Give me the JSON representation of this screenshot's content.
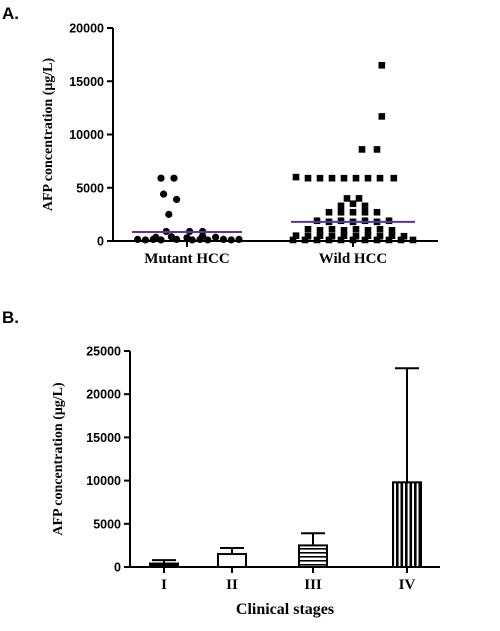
{
  "panel_labels": {
    "a": "A.",
    "b": "B."
  },
  "colors": {
    "mean_line": "#5533aa",
    "ink": "#000000",
    "paper": "#ffffff"
  },
  "chart_data": [
    {
      "type": "scatter",
      "panel": "A.",
      "ylabel": "AFP concentration (μg/L)",
      "ylim": [
        0,
        20000
      ],
      "yticks": [
        0,
        5000,
        10000,
        15000,
        20000
      ],
      "categories": [
        "Mutant HCC",
        "Wild HCC"
      ],
      "series": [
        {
          "category": "Mutant HCC",
          "marker": "circle",
          "mean": 850,
          "points": [
            {
              "dx": -0.5,
              "y": 5900
            },
            {
              "dx": -0.25,
              "y": 5900
            },
            {
              "dx": -0.45,
              "y": 4400
            },
            {
              "dx": -0.2,
              "y": 3900
            },
            {
              "dx": -0.35,
              "y": 2500
            },
            {
              "dx": -0.4,
              "y": 900
            },
            {
              "dx": 0.05,
              "y": 900
            },
            {
              "dx": 0.3,
              "y": 900
            },
            {
              "dx": -0.6,
              "y": 350
            },
            {
              "dx": -0.3,
              "y": 400
            },
            {
              "dx": 0.0,
              "y": 300
            },
            {
              "dx": 0.3,
              "y": 450
            },
            {
              "dx": 0.55,
              "y": 350
            },
            {
              "dx": -0.95,
              "y": 150
            },
            {
              "dx": -0.8,
              "y": 100
            },
            {
              "dx": -0.65,
              "y": 150
            },
            {
              "dx": -0.5,
              "y": 100
            },
            {
              "dx": -0.2,
              "y": 150
            },
            {
              "dx": 0.1,
              "y": 100
            },
            {
              "dx": 0.25,
              "y": 150
            },
            {
              "dx": 0.4,
              "y": 100
            },
            {
              "dx": 0.7,
              "y": 150
            },
            {
              "dx": 0.85,
              "y": 100
            },
            {
              "dx": 1.0,
              "y": 150
            }
          ]
        },
        {
          "category": "Wild HCC",
          "marker": "square",
          "mean": 1800,
          "points": [
            {
              "dx": 0.48,
              "y": 16500
            },
            {
              "dx": 0.48,
              "y": 11700
            },
            {
              "dx": 0.15,
              "y": 8600
            },
            {
              "dx": 0.4,
              "y": 8600
            },
            {
              "dx": -0.95,
              "y": 6000
            },
            {
              "dx": -0.75,
              "y": 5900
            },
            {
              "dx": -0.55,
              "y": 5900
            },
            {
              "dx": -0.35,
              "y": 5900
            },
            {
              "dx": -0.15,
              "y": 5900
            },
            {
              "dx": 0.05,
              "y": 5900
            },
            {
              "dx": 0.25,
              "y": 5900
            },
            {
              "dx": 0.45,
              "y": 5900
            },
            {
              "dx": 0.68,
              "y": 5900
            },
            {
              "dx": -0.1,
              "y": 4000
            },
            {
              "dx": 0.1,
              "y": 4000
            },
            {
              "dx": -0.2,
              "y": 3300
            },
            {
              "dx": 0.0,
              "y": 3500
            },
            {
              "dx": 0.2,
              "y": 3300
            },
            {
              "dx": -0.4,
              "y": 2700
            },
            {
              "dx": -0.2,
              "y": 2700
            },
            {
              "dx": 0.0,
              "y": 2700
            },
            {
              "dx": 0.2,
              "y": 2700
            },
            {
              "dx": 0.4,
              "y": 2700
            },
            {
              "dx": -0.6,
              "y": 1900
            },
            {
              "dx": -0.4,
              "y": 1800
            },
            {
              "dx": -0.2,
              "y": 1900
            },
            {
              "dx": 0.0,
              "y": 1800
            },
            {
              "dx": 0.2,
              "y": 1900
            },
            {
              "dx": 0.4,
              "y": 1800
            },
            {
              "dx": 0.6,
              "y": 1900
            },
            {
              "dx": -0.75,
              "y": 1100
            },
            {
              "dx": -0.55,
              "y": 1000
            },
            {
              "dx": -0.35,
              "y": 1100
            },
            {
              "dx": -0.15,
              "y": 1000
            },
            {
              "dx": 0.05,
              "y": 1100
            },
            {
              "dx": 0.25,
              "y": 1000
            },
            {
              "dx": 0.45,
              "y": 1100
            },
            {
              "dx": 0.65,
              "y": 1000
            },
            {
              "dx": -0.95,
              "y": 500
            },
            {
              "dx": -0.75,
              "y": 450
            },
            {
              "dx": -0.55,
              "y": 500
            },
            {
              "dx": -0.35,
              "y": 450
            },
            {
              "dx": -0.15,
              "y": 500
            },
            {
              "dx": 0.05,
              "y": 450
            },
            {
              "dx": 0.25,
              "y": 500
            },
            {
              "dx": 0.45,
              "y": 450
            },
            {
              "dx": 0.65,
              "y": 500
            },
            {
              "dx": 0.85,
              "y": 450
            },
            {
              "dx": -1.0,
              "y": 100
            },
            {
              "dx": -0.8,
              "y": 100
            },
            {
              "dx": -0.6,
              "y": 100
            },
            {
              "dx": -0.4,
              "y": 100
            },
            {
              "dx": -0.2,
              "y": 100
            },
            {
              "dx": 0.0,
              "y": 100
            },
            {
              "dx": 0.2,
              "y": 100
            },
            {
              "dx": 0.4,
              "y": 100
            },
            {
              "dx": 0.6,
              "y": 100
            },
            {
              "dx": 0.8,
              "y": 100
            },
            {
              "dx": 1.0,
              "y": 100
            }
          ]
        }
      ]
    },
    {
      "type": "bar",
      "panel": "B.",
      "ylabel": "AFP concentration (μg/L)",
      "xlabel": "Clinical stages",
      "ylim": [
        0,
        25000
      ],
      "yticks": [
        0,
        5000,
        10000,
        15000,
        20000,
        25000
      ],
      "categories": [
        "I",
        "II",
        "III",
        "IV"
      ],
      "values": [
        400,
        1500,
        2500,
        9800
      ],
      "error_upper": [
        800,
        2200,
        3900,
        23000
      ],
      "fills": [
        "solid",
        "white",
        "horizontal-stripes",
        "vertical-stripes"
      ]
    }
  ]
}
